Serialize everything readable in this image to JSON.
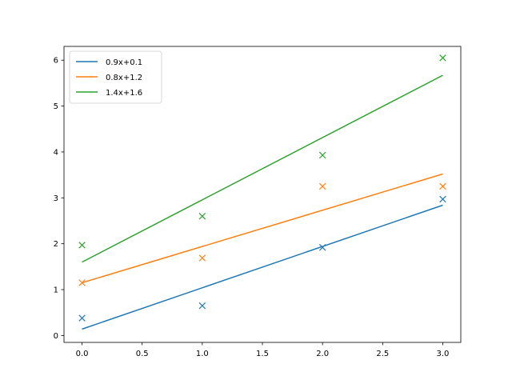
{
  "chart_data": {
    "type": "line",
    "title": "",
    "xlabel": "",
    "ylabel": "",
    "xlim": [
      -0.15,
      3.15
    ],
    "ylim": [
      -0.15,
      6.3
    ],
    "xticks": [
      0.0,
      0.5,
      1.0,
      1.5,
      2.0,
      2.5,
      3.0
    ],
    "xtick_labels": [
      "0.0",
      "0.5",
      "1.0",
      "1.5",
      "2.0",
      "2.5",
      "3.0"
    ],
    "yticks": [
      0,
      1,
      2,
      3,
      4,
      5,
      6
    ],
    "ytick_labels": [
      "0",
      "1",
      "2",
      "3",
      "4",
      "5",
      "6"
    ],
    "grid": false,
    "legend_position": "top-left",
    "series": [
      {
        "name": "0.9x+0.1",
        "color": "#1f77b4",
        "line": {
          "x": [
            0,
            3
          ],
          "y": [
            0.14,
            2.84
          ]
        },
        "points": {
          "x": [
            0,
            1,
            2,
            3
          ],
          "y": [
            0.38,
            0.65,
            1.92,
            2.97
          ]
        }
      },
      {
        "name": "0.8x+1.2",
        "color": "#ff7f0e",
        "line": {
          "x": [
            0,
            3
          ],
          "y": [
            1.15,
            3.52
          ]
        },
        "points": {
          "x": [
            0,
            1,
            2,
            3
          ],
          "y": [
            1.15,
            1.69,
            3.25,
            3.25
          ]
        }
      },
      {
        "name": "1.4x+1.6",
        "color": "#2ca02c",
        "line": {
          "x": [
            0,
            3
          ],
          "y": [
            1.6,
            5.67
          ]
        },
        "points": {
          "x": [
            0,
            1,
            2,
            3
          ],
          "y": [
            1.97,
            2.6,
            3.93,
            6.05
          ]
        }
      }
    ]
  }
}
